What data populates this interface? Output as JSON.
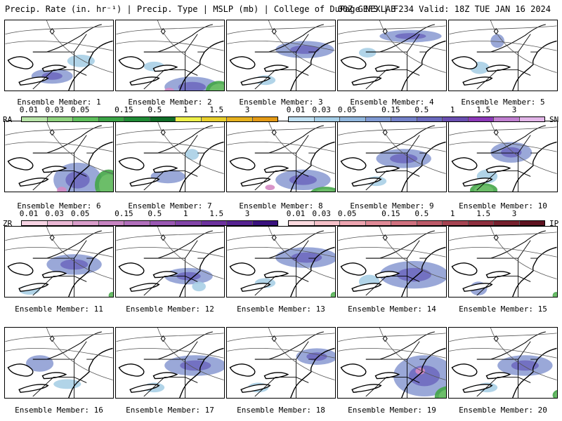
{
  "header": {
    "left": "Precip. Rate (in. hr⁻¹) | Precip. Type | MSLP (mb) | College of DuPage NEXLAB",
    "right": "00Z GEFS | F234 Valid: 18Z TUE JAN 16 2024"
  },
  "member_prefix": "Ensemble Member: ",
  "members": [
    {
      "n": "1",
      "snow": [
        [
          38,
          70,
          60,
          22
        ],
        [
          90,
          50,
          40,
          18
        ]
      ],
      "rain": [],
      "mix": []
    },
    {
      "n": "2",
      "snow": [
        [
          70,
          82,
          80,
          30
        ],
        [
          40,
          60,
          30,
          14
        ]
      ],
      "rain": [
        [
          130,
          88,
          38,
          28
        ]
      ],
      "mix": [
        [
          70,
          98,
          14,
          8
        ]
      ]
    },
    {
      "n": "3",
      "snow": [
        [
          70,
          30,
          85,
          25
        ],
        [
          40,
          80,
          30,
          14
        ]
      ],
      "rain": [],
      "mix": []
    },
    {
      "n": "4",
      "snow": [
        [
          60,
          14,
          90,
          18
        ],
        [
          30,
          40,
          25,
          14
        ]
      ],
      "rain": [],
      "mix": []
    },
    {
      "n": "5",
      "snow": [
        [
          60,
          20,
          20,
          20
        ],
        [
          30,
          60,
          28,
          18
        ]
      ],
      "rain": [],
      "mix": []
    },
    {
      "n": "6",
      "snow": [
        [
          70,
          60,
          70,
          50
        ]
      ],
      "rain": [
        [
          130,
          70,
          40,
          45
        ]
      ],
      "mix": [
        [
          75,
          95,
          14,
          10
        ]
      ]
    },
    {
      "n": "7",
      "snow": [
        [
          50,
          70,
          50,
          20
        ],
        [
          100,
          40,
          20,
          16
        ]
      ],
      "rain": [],
      "mix": []
    },
    {
      "n": "8",
      "snow": [
        [
          70,
          70,
          80,
          30
        ]
      ],
      "rain": [
        [
          120,
          95,
          45,
          20
        ]
      ],
      "mix": [
        [
          55,
          92,
          14,
          8
        ]
      ]
    },
    {
      "n": "9",
      "snow": [
        [
          55,
          40,
          80,
          28
        ],
        [
          40,
          80,
          30,
          14
        ]
      ],
      "rain": [],
      "mix": []
    },
    {
      "n": "10",
      "snow": [
        [
          60,
          30,
          60,
          30
        ],
        [
          40,
          70,
          30,
          20
        ]
      ],
      "rain": [
        [
          30,
          90,
          40,
          20
        ]
      ],
      "mix": []
    },
    {
      "n": "11",
      "snow": [
        [
          60,
          40,
          80,
          30
        ],
        [
          20,
          85,
          30,
          14
        ]
      ],
      "rain": [
        [
          150,
          95,
          10,
          10
        ]
      ],
      "mix": []
    },
    {
      "n": "12",
      "snow": [
        [
          70,
          60,
          70,
          24
        ],
        [
          110,
          80,
          20,
          14
        ]
      ],
      "rain": [],
      "mix": []
    },
    {
      "n": "13",
      "snow": [
        [
          70,
          30,
          90,
          30
        ],
        [
          40,
          75,
          30,
          14
        ]
      ],
      "rain": [
        [
          150,
          95,
          10,
          10
        ]
      ],
      "mix": []
    },
    {
      "n": "14",
      "snow": [
        [
          60,
          50,
          100,
          40
        ],
        [
          30,
          70,
          30,
          20
        ]
      ],
      "rain": [],
      "mix": []
    },
    {
      "n": "15",
      "snow": [
        [
          30,
          80,
          25,
          20
        ]
      ],
      "rain": [
        [
          150,
          95,
          10,
          10
        ]
      ],
      "mix": []
    },
    {
      "n": "16",
      "snow": [
        [
          30,
          40,
          40,
          24
        ],
        [
          70,
          75,
          40,
          14
        ]
      ],
      "rain": [],
      "mix": []
    },
    {
      "n": "17",
      "snow": [
        [
          70,
          40,
          90,
          30
        ],
        [
          40,
          80,
          30,
          14
        ]
      ],
      "rain": [],
      "mix": []
    },
    {
      "n": "18",
      "snow": [
        [
          100,
          30,
          60,
          24
        ],
        [
          30,
          80,
          30,
          14
        ]
      ],
      "rain": [],
      "mix": []
    },
    {
      "n": "19",
      "snow": [
        [
          80,
          40,
          90,
          60
        ]
      ],
      "rain": [
        [
          140,
          85,
          40,
          30
        ]
      ],
      "mix": [
        [
          112,
          58,
          14,
          10
        ]
      ]
    },
    {
      "n": "20",
      "snow": [
        [
          70,
          40,
          80,
          30
        ],
        [
          40,
          80,
          30,
          14
        ]
      ],
      "rain": [
        [
          150,
          90,
          20,
          16
        ]
      ],
      "mix": []
    }
  ],
  "legends": [
    {
      "left_code": "RA",
      "right_code": "",
      "ticks": [
        "0.01",
        "0.03",
        "0.05",
        "0.15",
        "0.5",
        "1",
        "1.5",
        "3"
      ],
      "colors": [
        "#b7e4a8",
        "#8fd37e",
        "#5fbf5c",
        "#3aa345",
        "#1f8a35",
        "#106d27",
        "#eef04a",
        "#e8cf2c",
        "#e6b11f",
        "#e39a16"
      ]
    },
    {
      "left_code": "",
      "right_code": "SN",
      "ticks": [
        "0.01",
        "0.03",
        "0.05",
        "0.15",
        "0.5",
        "1",
        "1.5",
        "3"
      ],
      "colors": [
        "#bfe0f2",
        "#a6cfe8",
        "#90b6dd",
        "#7f99d2",
        "#7381c8",
        "#6a69bd",
        "#6a4fb1",
        "#8c39b8",
        "#c07fd0",
        "#e2b5e8"
      ]
    },
    {
      "left_code": "ZR",
      "right_code": "",
      "ticks": [
        "0.01",
        "0.03",
        "0.05",
        "0.15",
        "0.5",
        "1",
        "1.5",
        "3"
      ],
      "colors": [
        "#f7d3e3",
        "#eab7d4",
        "#d99dca",
        "#c784c2",
        "#b16fbb",
        "#9a58b3",
        "#8244a8",
        "#6d329e",
        "#562391",
        "#3a127e"
      ]
    },
    {
      "left_code": "",
      "right_code": "IP",
      "ticks": [
        "0.01",
        "0.03",
        "0.05",
        "0.15",
        "0.5",
        "1",
        "1.5",
        "3"
      ],
      "colors": [
        "#fbd9de",
        "#f5c0c8",
        "#eda5b0",
        "#e08a97",
        "#d0717f",
        "#bc5a68",
        "#a64452",
        "#8e2f3e",
        "#76202d",
        "#5e1220"
      ]
    }
  ],
  "colors": {
    "snow_light": "#a9cfe6",
    "snow_mid": "#8f9fd4",
    "snow_dark": "#6f6ac0",
    "rain": "#44a548",
    "rain_light": "#6fc06a",
    "mix": "#d489c3",
    "border": "#000000",
    "isobar": "#555555"
  }
}
